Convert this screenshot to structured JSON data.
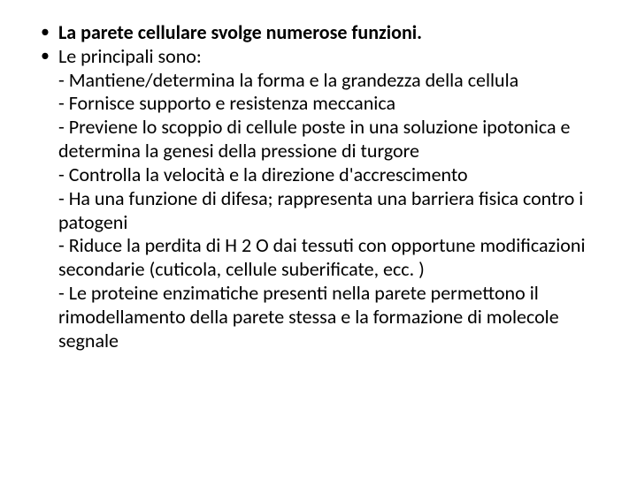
{
  "slide": {
    "background_color": "#ffffff",
    "text_color": "#000000",
    "font_family": "Calibri",
    "body_fontsize_pt": 22,
    "bullets": [
      {
        "text": "La parete cellulare svolge numerose funzioni.",
        "bold": true
      },
      {
        "text": " Le principali sono:",
        "bold": false,
        "sublines": [
          "- Mantiene/determina la forma e la grandezza della cellula",
          "- Fornisce supporto e resistenza meccanica",
          "- Previene lo scoppio di cellule poste in una soluzione ipotonica e determina la genesi della pressione di turgore",
          "- Controlla la velocità e la direzione d'accrescimento",
          "- Ha una funzione di difesa; rappresenta una barriera fisica contro i patogeni",
          "- Riduce la perdita di H 2 O dai tessuti con opportune modificazioni secondarie (cuticola, cellule suberificate, ecc. )",
          " - Le proteine enzimatiche presenti nella parete permettono il rimodellamento della parete stessa e la formazione di molecole segnale"
        ]
      }
    ]
  }
}
